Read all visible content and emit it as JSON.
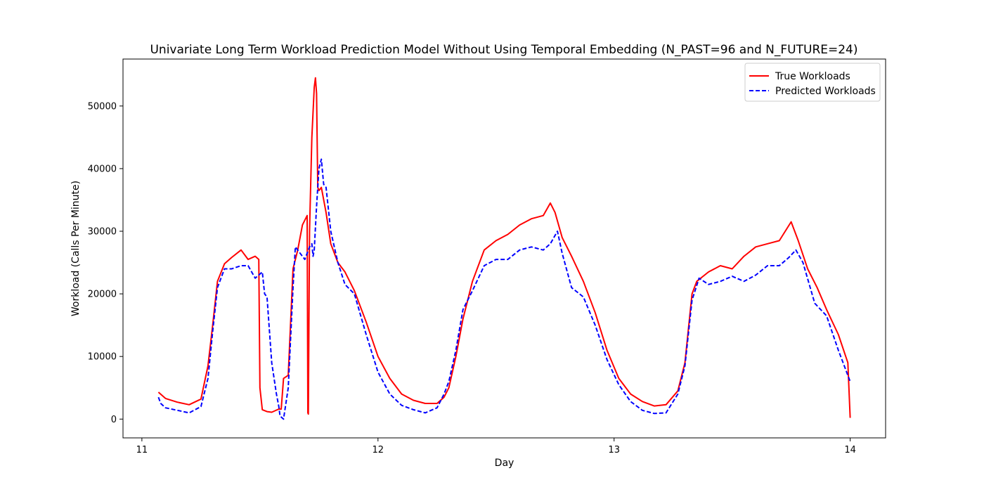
{
  "chart_data": {
    "type": "line",
    "title": "Univariate Long Term Workload Prediction Model Without Using Temporal Embedding (N_PAST=96 and N_FUTURE=24)",
    "xlabel": "Day",
    "ylabel": "Workload (Calls Per Minute)",
    "xlim": [
      10.92,
      14.15
    ],
    "ylim": [
      -3000,
      57500
    ],
    "xticks": [
      11,
      12,
      13,
      14
    ],
    "xtick_labels": [
      "11",
      "12",
      "13",
      "14"
    ],
    "yticks": [
      0,
      10000,
      20000,
      30000,
      40000,
      50000
    ],
    "ytick_labels": [
      "0",
      "10000",
      "20000",
      "30000",
      "40000",
      "50000"
    ],
    "grid": false,
    "legend_position": "top-right",
    "series": [
      {
        "name": "True Workloads",
        "color": "#ff0000",
        "style": "solid",
        "x": [
          11.07,
          11.1,
          11.15,
          11.2,
          11.25,
          11.28,
          11.3,
          11.32,
          11.35,
          11.38,
          11.42,
          11.45,
          11.48,
          11.495,
          11.5,
          11.51,
          11.53,
          11.55,
          11.58,
          11.59,
          11.6,
          11.62,
          11.64,
          11.66,
          11.68,
          11.7,
          11.703,
          11.705,
          11.71,
          11.72,
          11.73,
          11.735,
          11.74,
          11.745,
          11.75,
          11.76,
          11.78,
          11.8,
          11.83,
          11.86,
          11.9,
          11.95,
          12.0,
          12.05,
          12.1,
          12.15,
          12.2,
          12.25,
          12.28,
          12.3,
          12.33,
          12.36,
          12.4,
          12.45,
          12.5,
          12.55,
          12.6,
          12.65,
          12.7,
          12.73,
          12.75,
          12.78,
          12.82,
          12.87,
          12.92,
          12.97,
          13.02,
          13.07,
          13.12,
          13.17,
          13.22,
          13.27,
          13.3,
          13.33,
          13.35,
          13.4,
          13.45,
          13.5,
          13.55,
          13.6,
          13.65,
          13.7,
          13.75,
          13.78,
          13.82,
          13.86,
          13.9,
          13.95,
          13.99,
          14.0
        ],
        "y": [
          4300,
          3300,
          2700,
          2300,
          3200,
          8500,
          15000,
          22000,
          24800,
          25800,
          27000,
          25500,
          26000,
          25500,
          5000,
          1500,
          1200,
          1100,
          1600,
          1600,
          6500,
          7000,
          24000,
          27000,
          31000,
          32500,
          1000,
          800,
          30000,
          45000,
          53000,
          54500,
          52000,
          37000,
          36500,
          37000,
          33000,
          28000,
          25000,
          23500,
          20500,
          15500,
          10000,
          6500,
          4000,
          3000,
          2500,
          2500,
          3500,
          5000,
          10000,
          16000,
          22000,
          27000,
          28500,
          29500,
          31000,
          32000,
          32500,
          34500,
          33000,
          29000,
          26000,
          22000,
          17000,
          11000,
          6500,
          4000,
          2800,
          2100,
          2300,
          4500,
          9000,
          20000,
          22000,
          23500,
          24500,
          24000,
          26000,
          27500,
          28000,
          28500,
          31500,
          28500,
          24000,
          21000,
          17500,
          13500,
          9000,
          200
        ]
      },
      {
        "name": "Predicted Workloads",
        "color": "#0000ff",
        "style": "dashed",
        "x": [
          11.07,
          11.08,
          11.1,
          11.15,
          11.2,
          11.25,
          11.28,
          11.3,
          11.32,
          11.35,
          11.38,
          11.42,
          11.45,
          11.48,
          11.51,
          11.52,
          11.53,
          11.55,
          11.57,
          11.58,
          11.585,
          11.6,
          11.62,
          11.64,
          11.65,
          11.67,
          11.69,
          11.71,
          11.72,
          11.725,
          11.73,
          11.74,
          11.75,
          11.76,
          11.77,
          11.78,
          11.8,
          11.83,
          11.86,
          11.9,
          11.95,
          12.0,
          12.05,
          12.1,
          12.15,
          12.2,
          12.25,
          12.28,
          12.3,
          12.33,
          12.36,
          12.4,
          12.45,
          12.5,
          12.55,
          12.6,
          12.65,
          12.7,
          12.73,
          12.76,
          12.78,
          12.82,
          12.87,
          12.92,
          12.97,
          13.02,
          13.07,
          13.12,
          13.17,
          13.22,
          13.27,
          13.3,
          13.33,
          13.36,
          13.4,
          13.45,
          13.5,
          13.55,
          13.6,
          13.65,
          13.7,
          13.74,
          13.77,
          13.8,
          13.85,
          13.9,
          13.95,
          14.0
        ],
        "y": [
          3500,
          2500,
          1800,
          1400,
          1000,
          2000,
          6500,
          14000,
          21000,
          24000,
          24000,
          24500,
          24500,
          22500,
          23500,
          20000,
          19500,
          9000,
          4000,
          2000,
          500,
          0,
          5000,
          21000,
          27500,
          26500,
          25500,
          27500,
          28000,
          26000,
          27000,
          34000,
          40000,
          41500,
          37500,
          37000,
          30000,
          25000,
          21500,
          20000,
          13500,
          7500,
          4000,
          2200,
          1500,
          1000,
          1800,
          4000,
          6000,
          11000,
          17500,
          20500,
          24500,
          25500,
          25500,
          27000,
          27500,
          27000,
          28000,
          30000,
          26500,
          21000,
          19500,
          15000,
          9500,
          5500,
          2800,
          1400,
          900,
          1000,
          4000,
          8500,
          19000,
          22500,
          21500,
          22000,
          22800,
          22000,
          23000,
          24500,
          24500,
          25800,
          27000,
          25000,
          18500,
          16500,
          11000,
          6000
        ]
      }
    ]
  }
}
